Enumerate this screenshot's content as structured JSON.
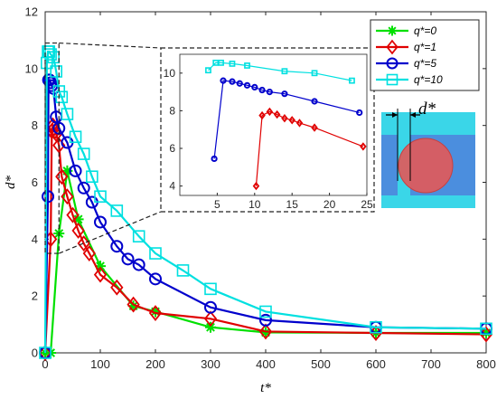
{
  "chart_data": [
    {
      "type": "line",
      "xlabel": "t*",
      "ylabel": "d*",
      "xlim": [
        0,
        800
      ],
      "ylim": [
        0,
        12
      ],
      "x_ticks": [
        "0",
        "100",
        "200",
        "300",
        "400",
        "500",
        "600",
        "700",
        "800"
      ],
      "y_ticks": [
        "0",
        "2",
        "4",
        "6",
        "8",
        "10",
        "12"
      ],
      "legend_position": "top-right",
      "series": [
        {
          "name": "q*=0",
          "color": "#00e000",
          "marker": "asterisk",
          "x": [
            0,
            10,
            25,
            40,
            60,
            100,
            160,
            200,
            300,
            400,
            600,
            800
          ],
          "y": [
            0,
            0,
            4.2,
            6.4,
            4.7,
            3.05,
            1.65,
            1.45,
            0.9,
            0.72,
            0.7,
            0.7
          ]
        },
        {
          "name": "q*=1",
          "color": "#e00000",
          "marker": "diamond",
          "x": [
            0,
            10,
            12,
            14,
            16,
            18,
            20,
            25,
            30,
            40,
            50,
            60,
            70,
            80,
            100,
            130,
            160,
            200,
            300,
            400,
            600,
            800
          ],
          "y": [
            0,
            4.0,
            7.8,
            8.0,
            7.9,
            7.8,
            7.7,
            7.3,
            6.2,
            5.5,
            4.85,
            4.3,
            3.85,
            3.5,
            2.75,
            2.3,
            1.7,
            1.4,
            1.2,
            0.75,
            0.7,
            0.65
          ]
        },
        {
          "name": "q*=5",
          "color": "#0000cc",
          "marker": "circle",
          "x": [
            0,
            5,
            6,
            8,
            10,
            12,
            15,
            20,
            25,
            40,
            55,
            70,
            85,
            100,
            130,
            150,
            170,
            200,
            300,
            400,
            600,
            800
          ],
          "y": [
            0,
            5.5,
            9.6,
            9.6,
            9.5,
            9.4,
            9.3,
            8.3,
            7.9,
            7.4,
            6.4,
            5.8,
            5.3,
            4.6,
            3.75,
            3.3,
            3.1,
            2.6,
            1.6,
            1.15,
            0.9,
            0.85
          ]
        },
        {
          "name": "q*=10",
          "color": "#00e0e0",
          "marker": "square",
          "x": [
            0,
            3,
            5,
            7,
            10,
            15,
            20,
            25,
            30,
            40,
            55,
            70,
            85,
            100,
            130,
            170,
            200,
            250,
            300,
            400,
            600,
            800
          ],
          "y": [
            0,
            10.2,
            10.6,
            10.6,
            10.5,
            10.4,
            9.9,
            9.2,
            9.0,
            8.4,
            7.6,
            7.0,
            6.2,
            5.5,
            5.0,
            4.1,
            3.5,
            2.9,
            2.25,
            1.45,
            0.9,
            0.85
          ]
        }
      ]
    },
    {
      "type": "line",
      "role": "inset",
      "xlim": [
        0,
        25
      ],
      "ylim": [
        3.5,
        11
      ],
      "x_ticks": [
        "5",
        "10",
        "15",
        "20",
        "25"
      ],
      "y_ticks": [
        "4",
        "6",
        "8",
        "10"
      ],
      "series": [
        {
          "name": "q*=1",
          "color": "#e00000",
          "marker": "diamond",
          "x": [
            10.2,
            11,
            12,
            13,
            14,
            15,
            16,
            18,
            24.5
          ],
          "y": [
            4.0,
            7.75,
            7.95,
            7.8,
            7.6,
            7.5,
            7.35,
            7.1,
            6.1
          ]
        },
        {
          "name": "q*=5",
          "color": "#0000cc",
          "marker": "circle",
          "x": [
            4.6,
            5.8,
            7,
            8,
            9,
            10,
            11,
            12,
            14,
            18,
            24
          ],
          "y": [
            5.45,
            9.6,
            9.55,
            9.45,
            9.35,
            9.25,
            9.1,
            9.0,
            8.9,
            8.5,
            7.9
          ]
        },
        {
          "name": "q*=10",
          "color": "#00e0e0",
          "marker": "square",
          "x": [
            3.8,
            4.8,
            5.5,
            7,
            9,
            14,
            18,
            23
          ],
          "y": [
            10.15,
            10.55,
            10.55,
            10.5,
            10.4,
            10.1,
            10.0,
            9.6
          ]
        }
      ]
    }
  ],
  "diagram": {
    "label": "d*",
    "colors": {
      "liquid": "#4b8ede",
      "wall": "#3ad6e8",
      "droplet": "#e05a5a"
    }
  }
}
